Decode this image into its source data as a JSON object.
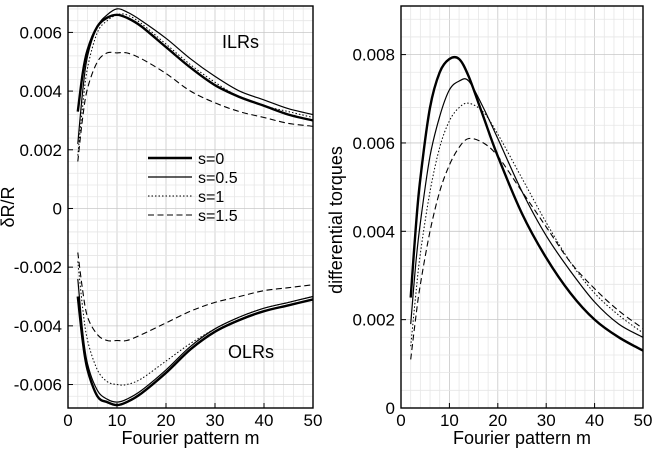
{
  "chart_data": [
    {
      "type": "line",
      "xlabel": "Fourier pattern m",
      "ylabel": "δR/R",
      "xlim": [
        0,
        50
      ],
      "ylim": [
        -0.0068,
        0.0069
      ],
      "grid": true,
      "xticks": [
        "0",
        "10",
        "20",
        "30",
        "40",
        "50"
      ],
      "yticks": [
        "0.006",
        "0.004",
        "0.002",
        "0",
        "-0.002",
        "-0.004",
        "-0.006"
      ],
      "yticks_values": [
        0.006,
        0.004,
        0.002,
        0,
        -0.002,
        -0.004,
        -0.006
      ],
      "legend": {
        "placement": "center",
        "entries": [
          {
            "label": "s=0",
            "style": "thick"
          },
          {
            "label": "s=0.5",
            "style": "solid"
          },
          {
            "label": "s=1",
            "style": "dotted"
          },
          {
            "label": "s=1.5",
            "style": "dashed"
          }
        ]
      },
      "annotations": [
        "ILRs",
        "OLRs"
      ],
      "series": [
        {
          "name": "s=0",
          "style": "thick",
          "x": [
            2,
            3,
            4,
            6,
            8,
            10,
            12,
            15,
            20,
            25,
            30,
            35,
            40,
            45,
            50
          ],
          "y": [
            0.0033,
            0.0046,
            0.0054,
            0.0062,
            0.0065,
            0.0066,
            0.0065,
            0.0062,
            0.0055,
            0.0048,
            0.0042,
            0.0038,
            0.0035,
            0.0032,
            0.003
          ]
        },
        {
          "name": "s=0",
          "style": "thick",
          "x": [
            2,
            3,
            4,
            6,
            8,
            10,
            12,
            15,
            20,
            25,
            30,
            35,
            40,
            45,
            50
          ],
          "y": [
            -0.003,
            -0.0045,
            -0.0055,
            -0.0064,
            -0.0066,
            -0.0067,
            -0.0066,
            -0.0063,
            -0.0056,
            -0.0048,
            -0.0042,
            -0.0038,
            -0.0035,
            -0.0033,
            -0.0031
          ]
        },
        {
          "name": "s=0.5",
          "style": "solid",
          "x": [
            2,
            3,
            4,
            6,
            8,
            10,
            12,
            15,
            20,
            25,
            30,
            35,
            40,
            45,
            50
          ],
          "y": [
            0.0022,
            0.004,
            0.0052,
            0.0062,
            0.0066,
            0.0068,
            0.0067,
            0.0064,
            0.0058,
            0.0051,
            0.0045,
            0.004,
            0.0037,
            0.0034,
            0.0032
          ]
        },
        {
          "name": "s=0.5",
          "style": "solid",
          "x": [
            2,
            3,
            4,
            6,
            8,
            10,
            12,
            15,
            20,
            25,
            30,
            35,
            40,
            45,
            50
          ],
          "y": [
            -0.0024,
            -0.0042,
            -0.0053,
            -0.0062,
            -0.0065,
            -0.0066,
            -0.0065,
            -0.0062,
            -0.0055,
            -0.0047,
            -0.0041,
            -0.0037,
            -0.0034,
            -0.0032,
            -0.003
          ]
        },
        {
          "name": "s=1",
          "style": "dotted",
          "x": [
            2,
            3,
            4,
            6,
            8,
            10,
            12,
            15,
            20,
            25,
            30,
            35,
            40,
            45,
            50
          ],
          "y": [
            0.0018,
            0.0035,
            0.0048,
            0.006,
            0.0064,
            0.0066,
            0.0066,
            0.0063,
            0.0056,
            0.0049,
            0.0043,
            0.0038,
            0.0035,
            0.0033,
            0.0031
          ]
        },
        {
          "name": "s=1",
          "style": "dotted",
          "x": [
            2,
            3,
            4,
            6,
            8,
            10,
            12,
            15,
            20,
            25,
            30,
            35,
            40,
            45,
            50
          ],
          "y": [
            -0.0018,
            -0.0034,
            -0.0045,
            -0.0055,
            -0.0059,
            -0.006,
            -0.006,
            -0.0058,
            -0.0052,
            -0.0046,
            -0.0041,
            -0.0037,
            -0.0034,
            -0.0032,
            -0.003
          ]
        },
        {
          "name": "s=1.5",
          "style": "dashed",
          "x": [
            2,
            3,
            4,
            6,
            8,
            10,
            12,
            15,
            20,
            25,
            30,
            35,
            40,
            45,
            50
          ],
          "y": [
            0.0016,
            0.0031,
            0.0041,
            0.005,
            0.0053,
            0.0053,
            0.0053,
            0.0051,
            0.0046,
            0.004,
            0.0036,
            0.0033,
            0.0031,
            0.0029,
            0.0028
          ]
        },
        {
          "name": "s=1.5",
          "style": "dashed",
          "x": [
            2,
            3,
            4,
            6,
            8,
            10,
            12,
            15,
            20,
            25,
            30,
            35,
            40,
            45,
            50
          ],
          "y": [
            -0.0015,
            -0.0028,
            -0.0037,
            -0.0043,
            -0.0045,
            -0.0045,
            -0.0045,
            -0.0043,
            -0.0039,
            -0.0035,
            -0.0032,
            -0.003,
            -0.0028,
            -0.0027,
            -0.0026
          ]
        }
      ]
    },
    {
      "type": "line",
      "xlabel": "Fourier pattern m",
      "ylabel": "differential torques",
      "xlim": [
        0,
        50
      ],
      "ylim": [
        0,
        0.0091
      ],
      "grid": true,
      "xticks": [
        "0",
        "10",
        "20",
        "30",
        "40",
        "50"
      ],
      "yticks": [
        "0.008",
        "0.006",
        "0.004",
        "0.002",
        "0"
      ],
      "yticks_values": [
        0.008,
        0.006,
        0.004,
        0.002,
        0
      ],
      "series": [
        {
          "name": "s=0",
          "style": "thick",
          "x": [
            2,
            3,
            4,
            6,
            8,
            10,
            12,
            14,
            17,
            20,
            25,
            30,
            35,
            40,
            45,
            50
          ],
          "y": [
            0.0025,
            0.004,
            0.0052,
            0.0068,
            0.0076,
            0.0079,
            0.0079,
            0.0075,
            0.0066,
            0.0057,
            0.0044,
            0.0034,
            0.0026,
            0.002,
            0.0016,
            0.0013
          ]
        },
        {
          "name": "s=0.5",
          "style": "solid",
          "x": [
            2,
            3,
            4,
            6,
            8,
            10,
            12,
            14,
            17,
            20,
            25,
            30,
            35,
            40,
            45,
            50
          ],
          "y": [
            0.0019,
            0.0032,
            0.0042,
            0.0057,
            0.0066,
            0.0072,
            0.0074,
            0.0074,
            0.0068,
            0.0061,
            0.0049,
            0.0039,
            0.0031,
            0.0024,
            0.0019,
            0.0016
          ]
        },
        {
          "name": "s=1",
          "style": "dotted",
          "x": [
            2,
            3,
            4,
            6,
            8,
            10,
            12,
            14,
            17,
            20,
            25,
            30,
            35,
            40,
            45,
            50
          ],
          "y": [
            0.0014,
            0.0025,
            0.0035,
            0.0049,
            0.0059,
            0.0065,
            0.0068,
            0.0069,
            0.0067,
            0.0062,
            0.0052,
            0.0042,
            0.0033,
            0.0026,
            0.0021,
            0.0017
          ]
        },
        {
          "name": "s=1.5",
          "style": "dashed",
          "x": [
            2,
            3,
            4,
            6,
            8,
            10,
            12,
            14,
            17,
            20,
            25,
            30,
            35,
            40,
            45,
            50
          ],
          "y": [
            0.0011,
            0.002,
            0.0028,
            0.004,
            0.0049,
            0.0055,
            0.0059,
            0.0061,
            0.006,
            0.0057,
            0.0049,
            0.0041,
            0.0033,
            0.0027,
            0.0022,
            0.0018
          ]
        }
      ]
    }
  ]
}
